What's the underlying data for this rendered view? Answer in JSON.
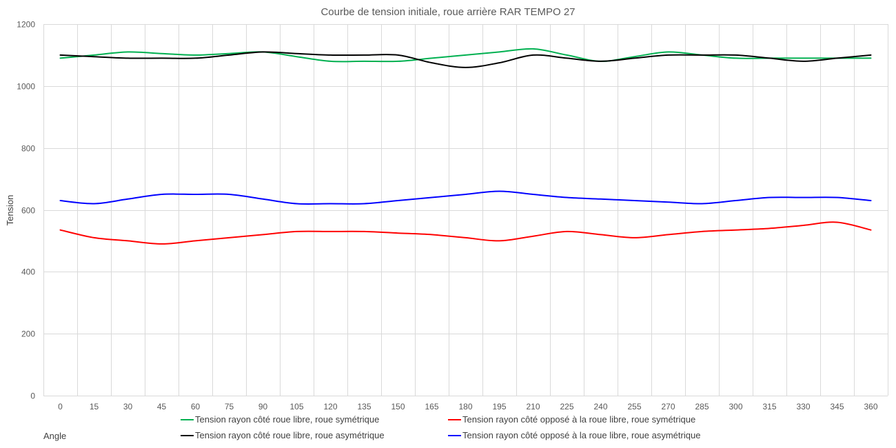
{
  "chart_data": {
    "type": "line",
    "title": "Courbe de tension initiale, roue arrière RAR TEMPO 27",
    "xlabel": "Angle",
    "ylabel": "Tension",
    "ylim": [
      0,
      1200
    ],
    "yticks": [
      0,
      200,
      400,
      600,
      800,
      1000,
      1200
    ],
    "grid": true,
    "legend_position": "bottom",
    "x": [
      0,
      15,
      30,
      45,
      60,
      75,
      90,
      105,
      120,
      135,
      150,
      165,
      180,
      195,
      210,
      225,
      240,
      255,
      270,
      285,
      300,
      315,
      330,
      345,
      360
    ],
    "series": [
      {
        "name": "Tension rayon côté roue libre, roue symétrique",
        "color": "#00b050",
        "values": [
          1090,
          1100,
          1110,
          1105,
          1100,
          1105,
          1110,
          1095,
          1080,
          1080,
          1080,
          1090,
          1100,
          1110,
          1120,
          1100,
          1080,
          1095,
          1110,
          1100,
          1090,
          1090,
          1090,
          1090,
          1090
        ]
      },
      {
        "name": "Tension rayon côté opposé   à la roue libre, roue symétrique",
        "color": "#ff0000",
        "values": [
          535,
          510,
          500,
          490,
          500,
          510,
          520,
          530,
          530,
          530,
          525,
          520,
          510,
          500,
          515,
          530,
          520,
          510,
          520,
          530,
          535,
          540,
          550,
          560,
          535
        ]
      },
      {
        "name": "Tension rayon côté roue libre, roue asymétrique",
        "color": "#000000",
        "values": [
          1100,
          1095,
          1090,
          1090,
          1090,
          1100,
          1110,
          1105,
          1100,
          1100,
          1100,
          1075,
          1060,
          1075,
          1100,
          1090,
          1080,
          1090,
          1100,
          1100,
          1100,
          1090,
          1080,
          1090,
          1100
        ]
      },
      {
        "name": "Tension rayon côté opposé   à la roue libre, roue asymétrique",
        "color": "#0000ff",
        "values": [
          630,
          620,
          635,
          650,
          650,
          650,
          635,
          620,
          620,
          620,
          630,
          640,
          650,
          660,
          650,
          640,
          635,
          630,
          625,
          620,
          630,
          640,
          640,
          640,
          630
        ]
      }
    ]
  }
}
